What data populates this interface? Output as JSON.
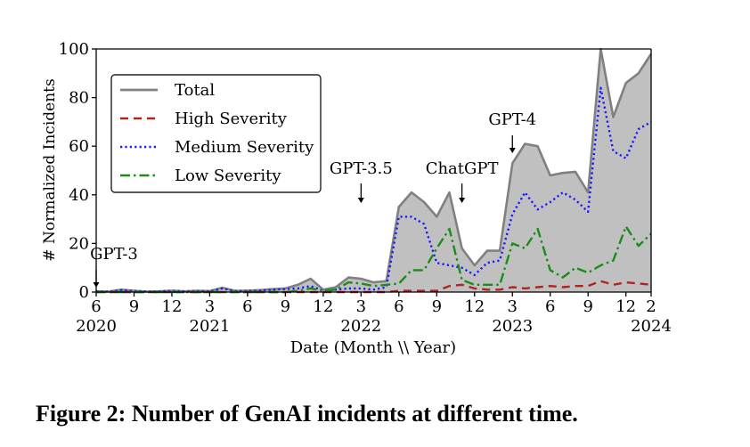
{
  "chart_data": {
    "type": "area",
    "xlabel": "Date (Month \\\\ Year)",
    "ylabel": "# Normalized Incidents",
    "ylim": [
      0,
      100
    ],
    "yticks": [
      0,
      20,
      40,
      60,
      80,
      100
    ],
    "xlim": [
      "2020-06",
      "2024-02"
    ],
    "xticks": [
      {
        "x": "2020-06",
        "month": "6",
        "year": "2020"
      },
      {
        "x": "2020-09",
        "month": "9",
        "year": ""
      },
      {
        "x": "2020-12",
        "month": "12",
        "year": ""
      },
      {
        "x": "2021-03",
        "month": "3",
        "year": "2021"
      },
      {
        "x": "2021-06",
        "month": "6",
        "year": ""
      },
      {
        "x": "2021-09",
        "month": "9",
        "year": ""
      },
      {
        "x": "2021-12",
        "month": "12",
        "year": ""
      },
      {
        "x": "2022-03",
        "month": "3",
        "year": "2022"
      },
      {
        "x": "2022-06",
        "month": "6",
        "year": ""
      },
      {
        "x": "2022-09",
        "month": "9",
        "year": ""
      },
      {
        "x": "2022-12",
        "month": "12",
        "year": ""
      },
      {
        "x": "2023-03",
        "month": "3",
        "year": "2023"
      },
      {
        "x": "2023-06",
        "month": "6",
        "year": ""
      },
      {
        "x": "2023-09",
        "month": "9",
        "year": ""
      },
      {
        "x": "2023-12",
        "month": "12",
        "year": ""
      },
      {
        "x": "2024-02",
        "month": "2",
        "year": "2024"
      }
    ],
    "x": [
      "2020-06",
      "2020-07",
      "2020-08",
      "2020-09",
      "2020-10",
      "2020-11",
      "2020-12",
      "2021-01",
      "2021-02",
      "2021-03",
      "2021-04",
      "2021-05",
      "2021-06",
      "2021-07",
      "2021-08",
      "2021-09",
      "2021-10",
      "2021-11",
      "2021-12",
      "2022-01",
      "2022-02",
      "2022-03",
      "2022-04",
      "2022-05",
      "2022-06",
      "2022-07",
      "2022-08",
      "2022-09",
      "2022-10",
      "2022-11",
      "2022-12",
      "2023-01",
      "2023-02",
      "2023-03",
      "2023-04",
      "2023-05",
      "2023-06",
      "2023-07",
      "2023-08",
      "2023-09",
      "2023-10",
      "2023-11",
      "2023-12",
      "2024-01",
      "2024-02"
    ],
    "series": [
      {
        "name": "Total",
        "color": "#808080",
        "style": "solid",
        "fill": "#c0c0c0",
        "values": [
          0.3,
          0.2,
          1.0,
          0.5,
          0.2,
          0.3,
          0.6,
          0.3,
          0.5,
          0.4,
          1.8,
          0.5,
          0.6,
          0.8,
          1.2,
          1.5,
          3.0,
          5.5,
          1.0,
          2.0,
          6.0,
          5.5,
          4.0,
          4.5,
          35.0,
          41.0,
          37.0,
          31.0,
          41.0,
          18.0,
          11.0,
          17.0,
          17.0,
          53.0,
          61.0,
          60.0,
          48.0,
          49.0,
          49.5,
          41.0,
          100.0,
          72.0,
          86.0,
          90.0,
          98.0
        ]
      },
      {
        "name": "High Severity",
        "color": "#b22222",
        "style": "dashed",
        "values": [
          0,
          0,
          0,
          0,
          0,
          0,
          0,
          0,
          0,
          0,
          0,
          0,
          0,
          0,
          0,
          0,
          0,
          0,
          0,
          0,
          0,
          0,
          0,
          0,
          0.5,
          0.5,
          0.5,
          0.5,
          2.5,
          3.0,
          1.5,
          1.0,
          1.0,
          2.0,
          1.5,
          2.0,
          2.5,
          2.0,
          2.5,
          2.5,
          4.5,
          3.0,
          4.0,
          3.5,
          3.0
        ]
      },
      {
        "name": "Medium Severity",
        "color": "#1a1aff",
        "style": "dotted",
        "values": [
          0.3,
          0.2,
          0.8,
          0.5,
          0.2,
          0.3,
          0.5,
          0.3,
          0.4,
          0.3,
          1.5,
          0.4,
          0.5,
          0.6,
          1.0,
          1.2,
          1.5,
          2.5,
          0.5,
          1.0,
          1.5,
          1.5,
          1.0,
          2.0,
          31.0,
          31.0,
          28.0,
          12.0,
          11.0,
          10.0,
          7.0,
          12.0,
          13.0,
          32.0,
          41.0,
          34.0,
          37.0,
          41.0,
          38.0,
          33.0,
          84.0,
          58.0,
          55.0,
          67.0,
          70.0
        ]
      },
      {
        "name": "Low Severity",
        "color": "#1a8c1a",
        "style": "dashdot",
        "values": [
          0,
          0,
          0,
          0,
          0,
          0,
          0,
          0,
          0,
          0,
          0,
          0,
          0,
          0,
          0,
          0,
          0.5,
          1.5,
          0.5,
          1.0,
          4.0,
          3.5,
          2.5,
          3.0,
          3.5,
          9.0,
          9.0,
          18.0,
          26.0,
          5.0,
          3.0,
          3.0,
          3.0,
          20.0,
          18.0,
          26.0,
          9.0,
          6.0,
          10.0,
          8.0,
          11.0,
          13.0,
          27.0,
          19.0,
          24.0
        ]
      }
    ],
    "legend": {
      "placement": "top-left",
      "entries": [
        "Total",
        "High Severity",
        "Medium Severity",
        "Low Severity"
      ]
    },
    "annotations": [
      {
        "text": "GPT-3",
        "x": "2020-06"
      },
      {
        "text": "GPT-3.5",
        "x": "2022-03"
      },
      {
        "text": "ChatGPT",
        "x": "2022-11"
      },
      {
        "text": "GPT-4",
        "x": "2023-03"
      }
    ],
    "grid": false
  },
  "caption": "Figure 2: Number of GenAI incidents at different time."
}
